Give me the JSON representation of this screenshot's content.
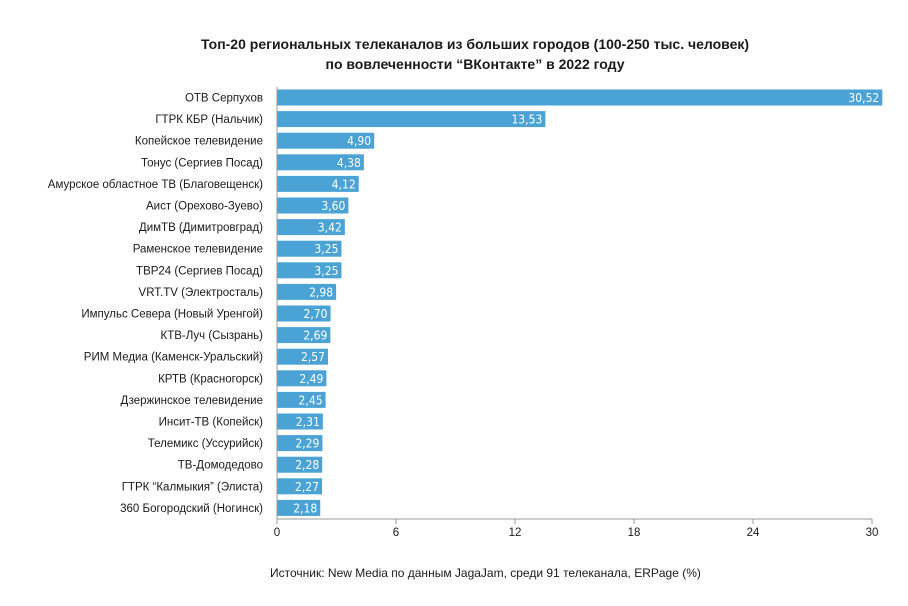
{
  "colors": {
    "bar": "#4aa3d4",
    "axis": "#9a9a9a",
    "text": "#1a1a1a"
  },
  "title_line1": "Топ-20 региональных телеканалов из больших городов (100-250 тыс. человек)",
  "title_line2": "по вовлеченности “ВКонтакте” в 2022 году",
  "source": "Источник: New Media по данным JagaJam, среди 91 телеканала, ERPage (%)",
  "chart_data": {
    "type": "bar",
    "orientation": "horizontal",
    "title": "Топ-20 региональных телеканалов из больших городов (100-250 тыс. человек) по вовлеченности “ВКонтакте” в 2022 году",
    "categories": [
      "ОТВ Серпухов",
      "ГТРК КБР (Нальчик)",
      "Копейское телевидение",
      "Тонус (Сергиев Посад)",
      "Амурское областное ТВ (Благовещенск)",
      "Аист (Орехово-Зуево)",
      "ДимТВ (Димитровград)",
      "Раменское телевидение",
      "ТВР24 (Сергиев Посад)",
      "VRT.TV (Электросталь)",
      "Импульс Севера (Новый Уренгой)",
      "КТВ-Луч (Сызрань)",
      "РИМ Медиа (Каменск-Уральский)",
      "КРТВ (Красногорск)",
      "Дзержинское телевидение",
      "Инсит-ТВ (Копейск)",
      "Телемикс (Уссурийск)",
      "ТВ-Домодедово",
      "ГТРК “Калмыкия” (Элиста)",
      "360 Богородский (Ногинск)"
    ],
    "values": [
      30.52,
      13.53,
      4.9,
      4.38,
      4.12,
      3.6,
      3.42,
      3.25,
      3.25,
      2.98,
      2.7,
      2.69,
      2.57,
      2.49,
      2.45,
      2.31,
      2.29,
      2.28,
      2.27,
      2.18
    ],
    "value_labels": [
      "30,52",
      "13,53",
      "4,90",
      "4,38",
      "4,12",
      "3,60",
      "3,42",
      "3,25",
      "3,25",
      "2,98",
      "2,70",
      "2,69",
      "2,57",
      "2,49",
      "2,45",
      "2,31",
      "2,29",
      "2,28",
      "2,27",
      "2,18"
    ],
    "xlim": [
      0,
      30
    ],
    "xticks": [
      0,
      6,
      12,
      18,
      24,
      30
    ],
    "xlabel": "",
    "ylabel": "",
    "grid": false,
    "legend": "none"
  }
}
